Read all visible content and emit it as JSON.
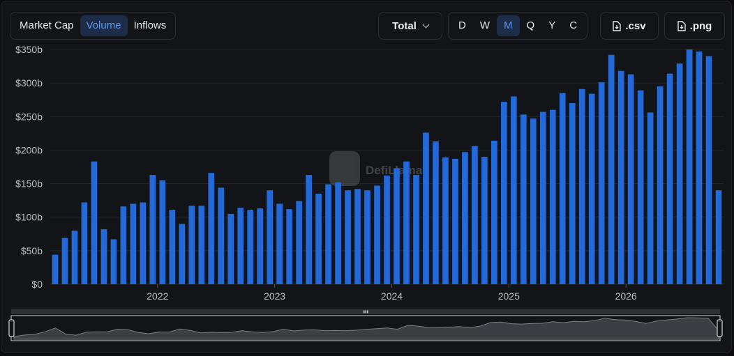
{
  "toolbar": {
    "metric_tabs": [
      {
        "label": "Market Cap",
        "active": false
      },
      {
        "label": "Volume",
        "active": true
      },
      {
        "label": "Inflows",
        "active": false
      }
    ],
    "total_label": "Total",
    "periods": [
      {
        "label": "D",
        "active": false
      },
      {
        "label": "W",
        "active": false
      },
      {
        "label": "M",
        "active": true
      },
      {
        "label": "Q",
        "active": false
      },
      {
        "label": "Y",
        "active": false
      },
      {
        "label": "C",
        "active": false
      }
    ],
    "csv_label": ".csv",
    "png_label": ".png"
  },
  "watermark": "DefiLlama",
  "colors": {
    "bar": "#2369d8",
    "active_bg": "#1c2c49",
    "active_text": "#5f97ea",
    "background": "#131417"
  },
  "chart_data": {
    "type": "bar",
    "start": "2021-02",
    "interval": "monthly",
    "y_tick_labels": [
      "$0",
      "$50b",
      "$100b",
      "$150b",
      "$200b",
      "$250b",
      "$300b",
      "$350b"
    ],
    "x_tick_labels": [
      "2022",
      "2023",
      "2024",
      "2025",
      "2026"
    ],
    "ylim": [
      0,
      350
    ],
    "values": [
      44,
      69,
      80,
      122,
      183,
      82,
      67,
      116,
      120,
      122,
      163,
      155,
      111,
      90,
      117,
      117,
      166,
      144,
      105,
      114,
      111,
      113,
      140,
      120,
      112,
      124,
      163,
      135,
      149,
      152,
      140,
      142,
      140,
      147,
      162,
      173,
      183,
      163,
      226,
      213,
      189,
      187,
      197,
      206,
      190,
      214,
      272,
      280,
      253,
      247,
      257,
      260,
      285,
      270,
      291,
      284,
      301,
      342,
      318,
      313,
      289,
      256,
      295,
      314,
      329,
      350,
      347,
      340,
      140
    ],
    "grid": true,
    "legend": "none",
    "brush": true
  }
}
